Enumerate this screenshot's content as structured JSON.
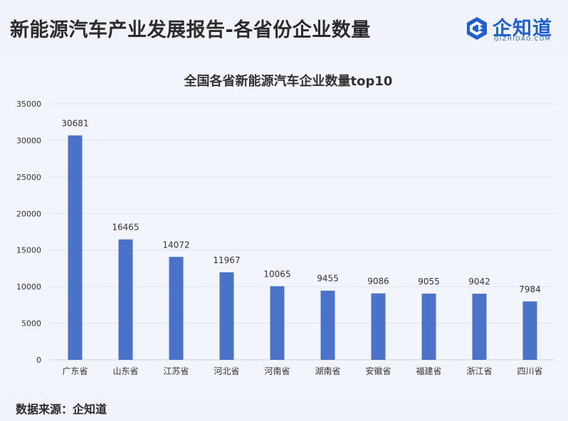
{
  "header": {
    "title": "新能源汽车产业发展报告-各省份企业数量",
    "logo_text": "企知道",
    "logo_sub": "QIZHIDAO.COM"
  },
  "footer": {
    "source": "数据来源：企知道"
  },
  "colors": {
    "bar": "#4a72c9",
    "grid": "#dde3ef",
    "logo": "#1f5fd6"
  },
  "chart_data": {
    "type": "bar",
    "title": "全国各省新能源汽车企业数量top10",
    "xlabel": "",
    "ylabel": "",
    "categories": [
      "广东省",
      "山东省",
      "江苏省",
      "河北省",
      "河南省",
      "湖南省",
      "安徽省",
      "福建省",
      "浙江省",
      "四川省"
    ],
    "values": [
      30681,
      16465,
      14072,
      11967,
      10065,
      9455,
      9086,
      9055,
      9042,
      7984
    ],
    "ylim": [
      0,
      35000
    ],
    "yticks": [
      0,
      5000,
      10000,
      15000,
      20000,
      25000,
      30000,
      35000
    ],
    "grid": true,
    "data_labels": true,
    "legend": "none"
  }
}
